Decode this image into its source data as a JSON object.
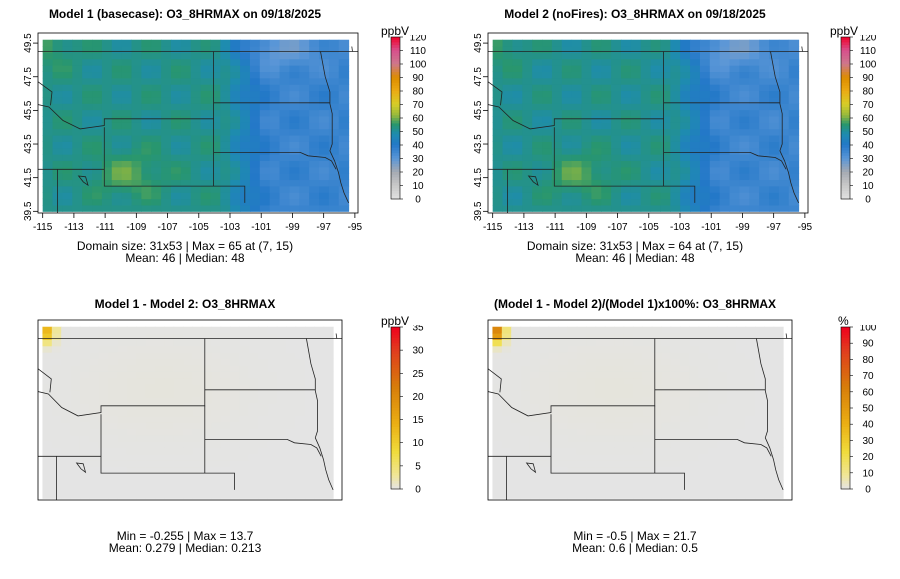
{
  "chart_data": [
    {
      "type": "heatmap",
      "title": "Model 1 (basecase): O3_8HRMAX on 09/18/2025",
      "legend_label": "ppbV",
      "legend_ticks": [
        "120",
        "110",
        "100",
        "90",
        "80",
        "70",
        "60",
        "50",
        "40",
        "30",
        "20",
        "10",
        "0"
      ],
      "legend_range": [
        0,
        120
      ],
      "x_ticks": [
        "-115",
        "-113",
        "-111",
        "-109",
        "-107",
        "-105",
        "-103",
        "-101",
        "-99",
        "-97",
        "-95"
      ],
      "y_ticks": [
        "49.5",
        "47.5",
        "45.5",
        "43.5",
        "41.5",
        "39.5"
      ],
      "xlim": [
        -115.3,
        -94.8
      ],
      "ylim": [
        39.4,
        50.1
      ],
      "stats_line1": "Domain size: 31x53 | Max = 65 at (7, 15)",
      "stats_line2": "Mean: 46 |  Median: 48",
      "max": 65,
      "mean": 46,
      "median": 48
    },
    {
      "type": "heatmap",
      "title": "Model 2 (noFires): O3_8HRMAX on 09/18/2025",
      "legend_label": "ppbV",
      "legend_ticks": [
        "120",
        "110",
        "100",
        "90",
        "80",
        "70",
        "60",
        "50",
        "40",
        "30",
        "20",
        "10",
        "0"
      ],
      "legend_range": [
        0,
        120
      ],
      "x_ticks": [
        "-115",
        "-113",
        "-111",
        "-109",
        "-107",
        "-105",
        "-103",
        "-101",
        "-99",
        "-97",
        "-95"
      ],
      "y_ticks": [
        "49.5",
        "47.5",
        "45.5",
        "43.5",
        "41.5",
        "39.5"
      ],
      "xlim": [
        -115.3,
        -94.8
      ],
      "ylim": [
        39.4,
        50.1
      ],
      "stats_line1": "Domain size: 31x53 | Max = 64 at (7, 15)",
      "stats_line2": "Mean: 46 |  Median: 48",
      "max": 64,
      "mean": 46,
      "median": 48
    },
    {
      "type": "heatmap",
      "title": "Model 1 - Model 2: O3_8HRMAX",
      "legend_label": "ppbV",
      "legend_ticks": [
        "35",
        "30",
        "25",
        "20",
        "15",
        "10",
        "5",
        "0"
      ],
      "legend_range": [
        0,
        35
      ],
      "stats_line1": "Min = -0.255 | Max = 13.7",
      "stats_line2": "Mean: 0.279 |  Median: 0.213",
      "min": -0.255,
      "max": 13.7,
      "mean": 0.279,
      "median": 0.213
    },
    {
      "type": "heatmap",
      "title": "(Model 1 - Model 2)/(Model 1)x100%: O3_8HRMAX",
      "legend_label": "%",
      "legend_ticks": [
        "100",
        "90",
        "80",
        "70",
        "60",
        "50",
        "40",
        "30",
        "20",
        "10",
        "0"
      ],
      "legend_range": [
        0,
        100
      ],
      "stats_line1": "Min = -0.5 | Max = 21.7",
      "stats_line2": "Mean: 0.6 |  Median: 0.5",
      "min": -0.5,
      "max": 21.7,
      "mean": 0.6,
      "median": 0.5
    }
  ]
}
